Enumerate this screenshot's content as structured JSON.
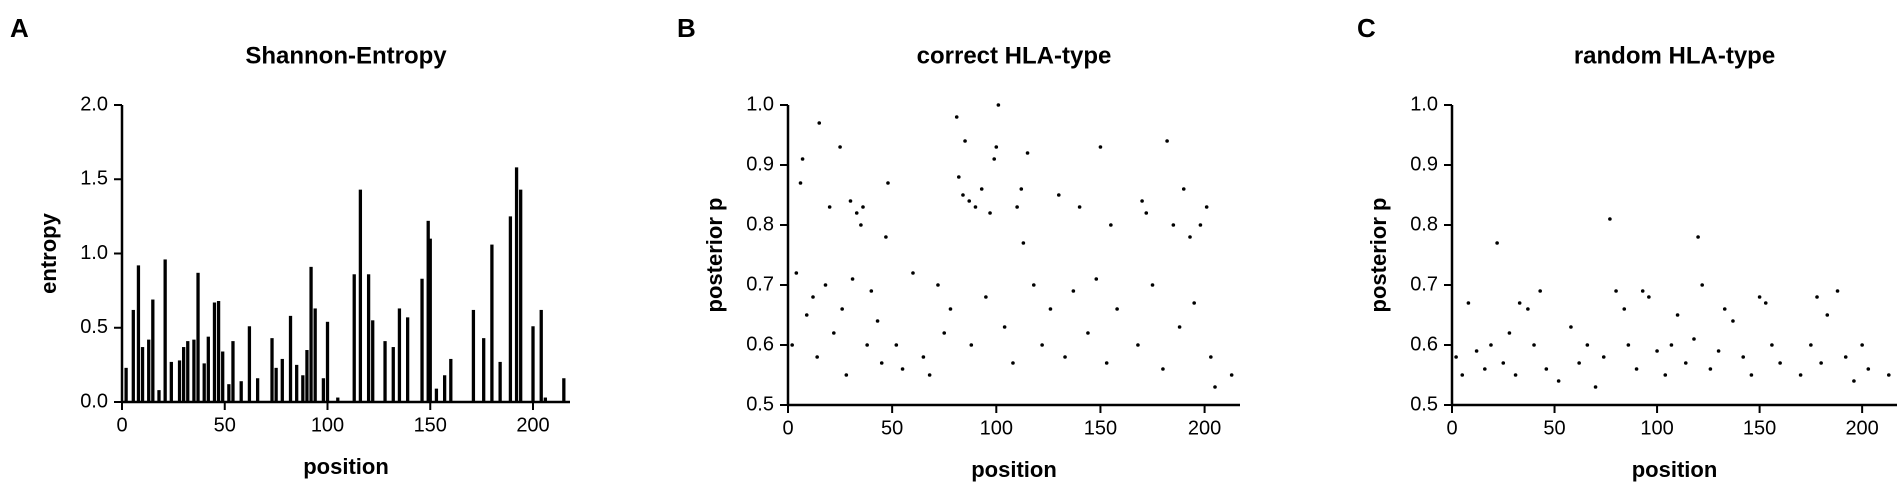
{
  "chart_data": [
    {
      "type": "bar",
      "panel_label": "A",
      "title": "Shannon-Entropy",
      "xlabel": "position",
      "ylabel": "entropy",
      "color": "#000000",
      "x": [
        2,
        5.5,
        8,
        10,
        13,
        15,
        18,
        21,
        24,
        28,
        30,
        32,
        35,
        37,
        40,
        42,
        45,
        47,
        49,
        52,
        54,
        58,
        62,
        66,
        73,
        75,
        78,
        82,
        85,
        88,
        90,
        92,
        94,
        98,
        100,
        105,
        113,
        116,
        120,
        122,
        128,
        132,
        135,
        139,
        146,
        149,
        150,
        153,
        157,
        160,
        171,
        176,
        180,
        184,
        189,
        192,
        194,
        200,
        204,
        206,
        215
      ],
      "values": [
        0.23,
        0.62,
        0.92,
        0.37,
        0.42,
        0.69,
        0.08,
        0.96,
        0.27,
        0.28,
        0.37,
        0.41,
        0.42,
        0.87,
        0.26,
        0.44,
        0.67,
        0.68,
        0.34,
        0.12,
        0.41,
        0.14,
        0.51,
        0.16,
        0.43,
        0.23,
        0.29,
        0.58,
        0.25,
        0.18,
        0.35,
        0.91,
        0.63,
        0.16,
        0.54,
        0.03,
        0.86,
        1.43,
        0.86,
        0.55,
        0.41,
        0.37,
        0.63,
        0.57,
        0.83,
        1.22,
        1.1,
        0.09,
        0.18,
        0.29,
        0.62,
        0.43,
        1.06,
        0.27,
        1.25,
        1.58,
        1.43,
        0.51,
        0.62,
        0.03,
        0.16
      ],
      "xlim": [
        0,
        218
      ],
      "xticks": [
        0,
        50,
        100,
        150,
        200
      ],
      "ylim": [
        0,
        2
      ],
      "yticks": [
        {
          "value": 0,
          "label": "0.0"
        },
        0.5,
        {
          "value": 1,
          "label": "1.0"
        },
        1.5,
        {
          "value": 2,
          "label": "2.0"
        }
      ]
    },
    {
      "type": "scatter",
      "panel_label": "B",
      "title": "correct HLA-type",
      "xlabel": "position",
      "ylabel": "posterior p",
      "color": "#000000",
      "x": [
        7,
        6,
        15,
        20,
        25,
        30,
        33,
        36,
        35,
        48,
        47,
        81,
        82,
        84,
        85,
        87,
        90,
        93,
        99,
        100,
        101,
        97,
        110,
        112,
        115,
        113,
        130,
        140,
        150,
        155,
        170,
        172,
        182,
        185,
        190,
        193,
        198,
        201,
        213,
        2,
        4,
        9,
        12,
        14,
        18,
        22,
        26,
        28,
        31,
        38,
        40,
        43,
        45,
        52,
        55,
        60,
        65,
        68,
        72,
        75,
        78,
        88,
        95,
        104,
        108,
        118,
        122,
        126,
        133,
        137,
        144,
        148,
        153,
        158,
        168,
        175,
        180,
        188,
        195,
        203,
        205
      ],
      "values": [
        0.91,
        0.87,
        0.97,
        0.83,
        0.93,
        0.84,
        0.82,
        0.83,
        0.8,
        0.87,
        0.78,
        0.98,
        0.88,
        0.85,
        0.94,
        0.84,
        0.83,
        0.86,
        0.91,
        0.93,
        1.0,
        0.82,
        0.83,
        0.86,
        0.92,
        0.77,
        0.85,
        0.83,
        0.93,
        0.8,
        0.84,
        0.82,
        0.94,
        0.8,
        0.86,
        0.78,
        0.8,
        0.83,
        0.55,
        0.6,
        0.72,
        0.65,
        0.68,
        0.58,
        0.7,
        0.62,
        0.66,
        0.55,
        0.71,
        0.6,
        0.69,
        0.64,
        0.57,
        0.6,
        0.56,
        0.72,
        0.58,
        0.55,
        0.7,
        0.62,
        0.66,
        0.6,
        0.68,
        0.63,
        0.57,
        0.7,
        0.6,
        0.66,
        0.58,
        0.69,
        0.62,
        0.71,
        0.57,
        0.66,
        0.6,
        0.7,
        0.56,
        0.63,
        0.67,
        0.58,
        0.53
      ],
      "xlim": [
        0,
        217
      ],
      "xticks": [
        0,
        50,
        100,
        150,
        200
      ],
      "ylim": [
        0.5,
        1
      ],
      "yticks": [
        0.5,
        0.6,
        0.7,
        0.8,
        0.9,
        {
          "value": 1,
          "label": "1.0"
        }
      ]
    },
    {
      "type": "scatter",
      "panel_label": "C",
      "title": "random HLA-type",
      "xlabel": "position",
      "ylabel": "posterior p",
      "color": "#000000",
      "x": [
        8,
        22,
        33,
        37,
        43,
        77,
        80,
        84,
        93,
        96,
        110,
        120,
        122,
        133,
        137,
        150,
        153,
        178,
        183,
        188,
        213,
        2,
        5,
        12,
        16,
        19,
        25,
        28,
        31,
        40,
        46,
        52,
        58,
        62,
        66,
        70,
        74,
        86,
        90,
        100,
        104,
        107,
        114,
        118,
        126,
        130,
        142,
        146,
        156,
        160,
        170,
        175,
        180,
        192,
        196,
        200,
        203
      ],
      "values": [
        0.67,
        0.77,
        0.67,
        0.66,
        0.69,
        0.81,
        0.69,
        0.66,
        0.69,
        0.68,
        0.65,
        0.78,
        0.7,
        0.66,
        0.64,
        0.68,
        0.67,
        0.68,
        0.65,
        0.69,
        0.55,
        0.58,
        0.55,
        0.59,
        0.56,
        0.6,
        0.57,
        0.62,
        0.55,
        0.6,
        0.56,
        0.54,
        0.63,
        0.57,
        0.6,
        0.53,
        0.58,
        0.6,
        0.56,
        0.59,
        0.55,
        0.6,
        0.57,
        0.61,
        0.56,
        0.59,
        0.58,
        0.55,
        0.6,
        0.57,
        0.55,
        0.6,
        0.57,
        0.58,
        0.54,
        0.6,
        0.56
      ],
      "xlim": [
        0,
        217
      ],
      "xticks": [
        0,
        50,
        100,
        150,
        200
      ],
      "ylim": [
        0.5,
        1
      ],
      "yticks": [
        0.5,
        0.6,
        0.7,
        0.8,
        0.9,
        {
          "value": 1,
          "label": "1.0"
        }
      ]
    }
  ]
}
